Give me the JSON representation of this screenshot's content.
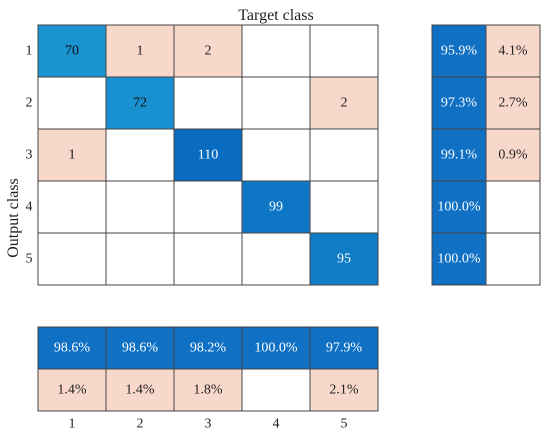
{
  "chart_data": {
    "type": "heatmap",
    "title": "Target class",
    "ylabel": "Output class",
    "row_labels": [
      "1",
      "2",
      "3",
      "4",
      "5"
    ],
    "col_labels": [
      "1",
      "2",
      "3",
      "4",
      "5"
    ],
    "matrix": [
      [
        70,
        1,
        2,
        null,
        null
      ],
      [
        null,
        72,
        null,
        null,
        2
      ],
      [
        1,
        null,
        110,
        null,
        null
      ],
      [
        null,
        null,
        null,
        99,
        null
      ],
      [
        null,
        null,
        null,
        null,
        95
      ]
    ],
    "row_summary": {
      "correct": [
        "95.9%",
        "97.3%",
        "99.1%",
        "100.0%",
        "100.0%"
      ],
      "incorrect": [
        "4.1%",
        "2.7%",
        "0.9%",
        "",
        ""
      ]
    },
    "col_summary": {
      "correct": [
        "98.6%",
        "98.6%",
        "98.2%",
        "100.0%",
        "97.9%"
      ],
      "incorrect": [
        "1.4%",
        "1.4%",
        "1.8%",
        "",
        "2.1%"
      ]
    },
    "colors": {
      "diag_low": "#1a93d1",
      "diag_high": "#0a6cc1",
      "error_fill": "#f9d8cc",
      "summary_blue": "#0f70c4",
      "grid": "#444444"
    }
  }
}
